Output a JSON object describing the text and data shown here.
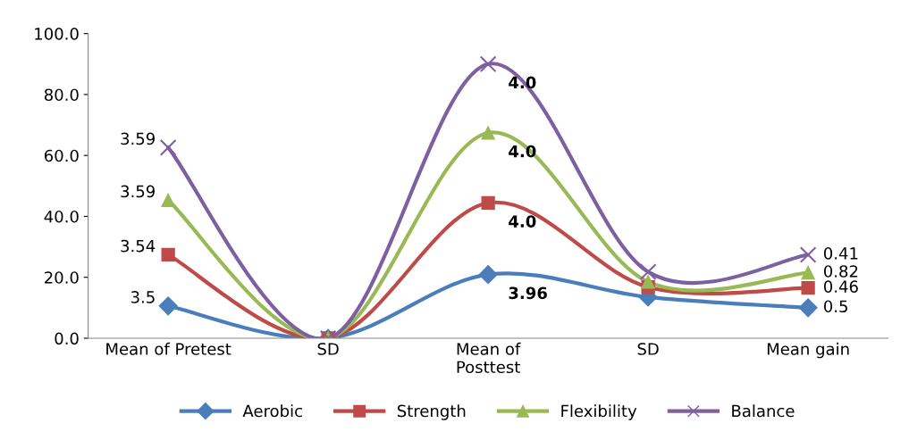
{
  "chart_data": {
    "type": "line",
    "categories": [
      "Mean of Pretest",
      "SD",
      "Mean of\nPosttest",
      "SD",
      "Mean gain"
    ],
    "series": [
      {
        "name": "Aerobic",
        "color": "#4a7ebb",
        "marker": "diamond",
        "values": [
          10.6,
          0,
          20.9,
          13.5,
          10.0
        ]
      },
      {
        "name": "Strength",
        "color": "#be4b48",
        "marker": "square",
        "values": [
          27.4,
          0,
          44.4,
          16.8,
          16.5
        ]
      },
      {
        "name": "Flexibility",
        "color": "#98b954",
        "marker": "triangle",
        "values": [
          45.3,
          0,
          67.4,
          18.5,
          21.5
        ]
      },
      {
        "name": "Balance",
        "color": "#7d60a0",
        "marker": "cross",
        "values": [
          62.6,
          0,
          90.0,
          21.8,
          27.4
        ]
      }
    ],
    "annotations": [
      {
        "text": "3.5",
        "x": "Mean of Pretest",
        "y": 10.6
      },
      {
        "text": "3.54",
        "x": "Mean of Pretest",
        "y": 27.4
      },
      {
        "text": "3.59",
        "x": "Mean of Pretest",
        "y": 45.3
      },
      {
        "text": "3.59",
        "x": "Mean of Pretest",
        "y": 62.6
      },
      {
        "text": "3.96",
        "x": "Mean of\nPosttest",
        "y": 20.9
      },
      {
        "text": "4.0",
        "x": "Mean of\nPosttest",
        "y": 44.4
      },
      {
        "text": "4.0",
        "x": "Mean of\nPosttest",
        "y": 67.4
      },
      {
        "text": "4.0",
        "x": "Mean of\nPosttest",
        "y": 90.0
      },
      {
        "text": "0.5",
        "x": "Mean gain",
        "y": 10.0
      },
      {
        "text": "0.46",
        "x": "Mean gain",
        "y": 16.5
      },
      {
        "text": "0.82",
        "x": "Mean gain",
        "y": 21.5
      },
      {
        "text": "0.41",
        "x": "Mean gain",
        "y": 27.4
      }
    ],
    "ylim": [
      0,
      100
    ],
    "yticks": [
      {
        "value": 0,
        "label": "0.0"
      },
      {
        "value": 20,
        "label": "20.0"
      },
      {
        "value": 40,
        "label": "40.0"
      },
      {
        "value": 60,
        "label": "60.0"
      },
      {
        "value": 80,
        "label": "80.0"
      },
      {
        "value": 100,
        "label": "100.0"
      }
    ],
    "grid": false,
    "legend": "bottom",
    "line_style": "solid"
  }
}
